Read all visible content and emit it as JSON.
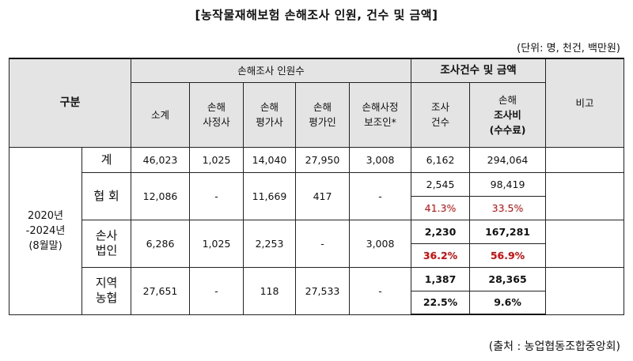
{
  "title": "[농작물재해보험 손해조사 인원, 건수 및 금액]",
  "unit": "(단위: 명, 천건, 백만원)",
  "source": "(출처 : 농업협동조합중앙회)",
  "header": {
    "gubun": "구분",
    "group_personnel": "손해조사 인원수",
    "group_cases": "조사건수 및 금액",
    "remarks": "비고",
    "subtotal": "소계",
    "adjuster_l1": "손해",
    "adjuster_l2": "사정사",
    "appraiser_l1": "손해",
    "appraiser_l2": "평가사",
    "assessor_l1": "손해",
    "assessor_l2": "평가인",
    "assistant_l1": "손해사정",
    "assistant_l2": "보조인*",
    "cases_l1": "조사",
    "cases_l2": "건수",
    "fee_l1": "손해",
    "fee_l2": "조사비",
    "fee_l3": "(수수료)"
  },
  "period": {
    "l1": "2020년",
    "l2": "-2024년",
    "l3": "(8월말)"
  },
  "rows": {
    "total": {
      "label": "계",
      "subtotal": "46,023",
      "adjuster": "1,025",
      "appraiser": "14,040",
      "assessor": "27,950",
      "assistant": "3,008",
      "cases": "6,162",
      "fee": "294,064"
    },
    "association": {
      "label": "협 회",
      "subtotal": "12,086",
      "adjuster": "-",
      "appraiser": "11,669",
      "assessor": "417",
      "assistant": "-",
      "cases": "2,545",
      "fee": "98,419",
      "cases_pct": "41.3%",
      "fee_pct": "33.5%"
    },
    "corporation": {
      "label_l1": "손사",
      "label_l2": "법인",
      "subtotal": "6,286",
      "adjuster": "1,025",
      "appraiser": "2,253",
      "assessor": "-",
      "assistant": "3,008",
      "cases": "2,230",
      "fee": "167,281",
      "cases_pct": "36.2%",
      "fee_pct": "56.9%"
    },
    "local_coop": {
      "label_l1": "지역",
      "label_l2": "농협",
      "subtotal": "27,651",
      "adjuster": "-",
      "appraiser": "118",
      "assessor": "27,533",
      "assistant": "-",
      "cases": "1,387",
      "fee": "28,365",
      "cases_pct": "22.5%",
      "fee_pct": "9.6%"
    }
  },
  "colors": {
    "header_bg": "#e4e4e4",
    "highlight_red": "#e00000"
  }
}
